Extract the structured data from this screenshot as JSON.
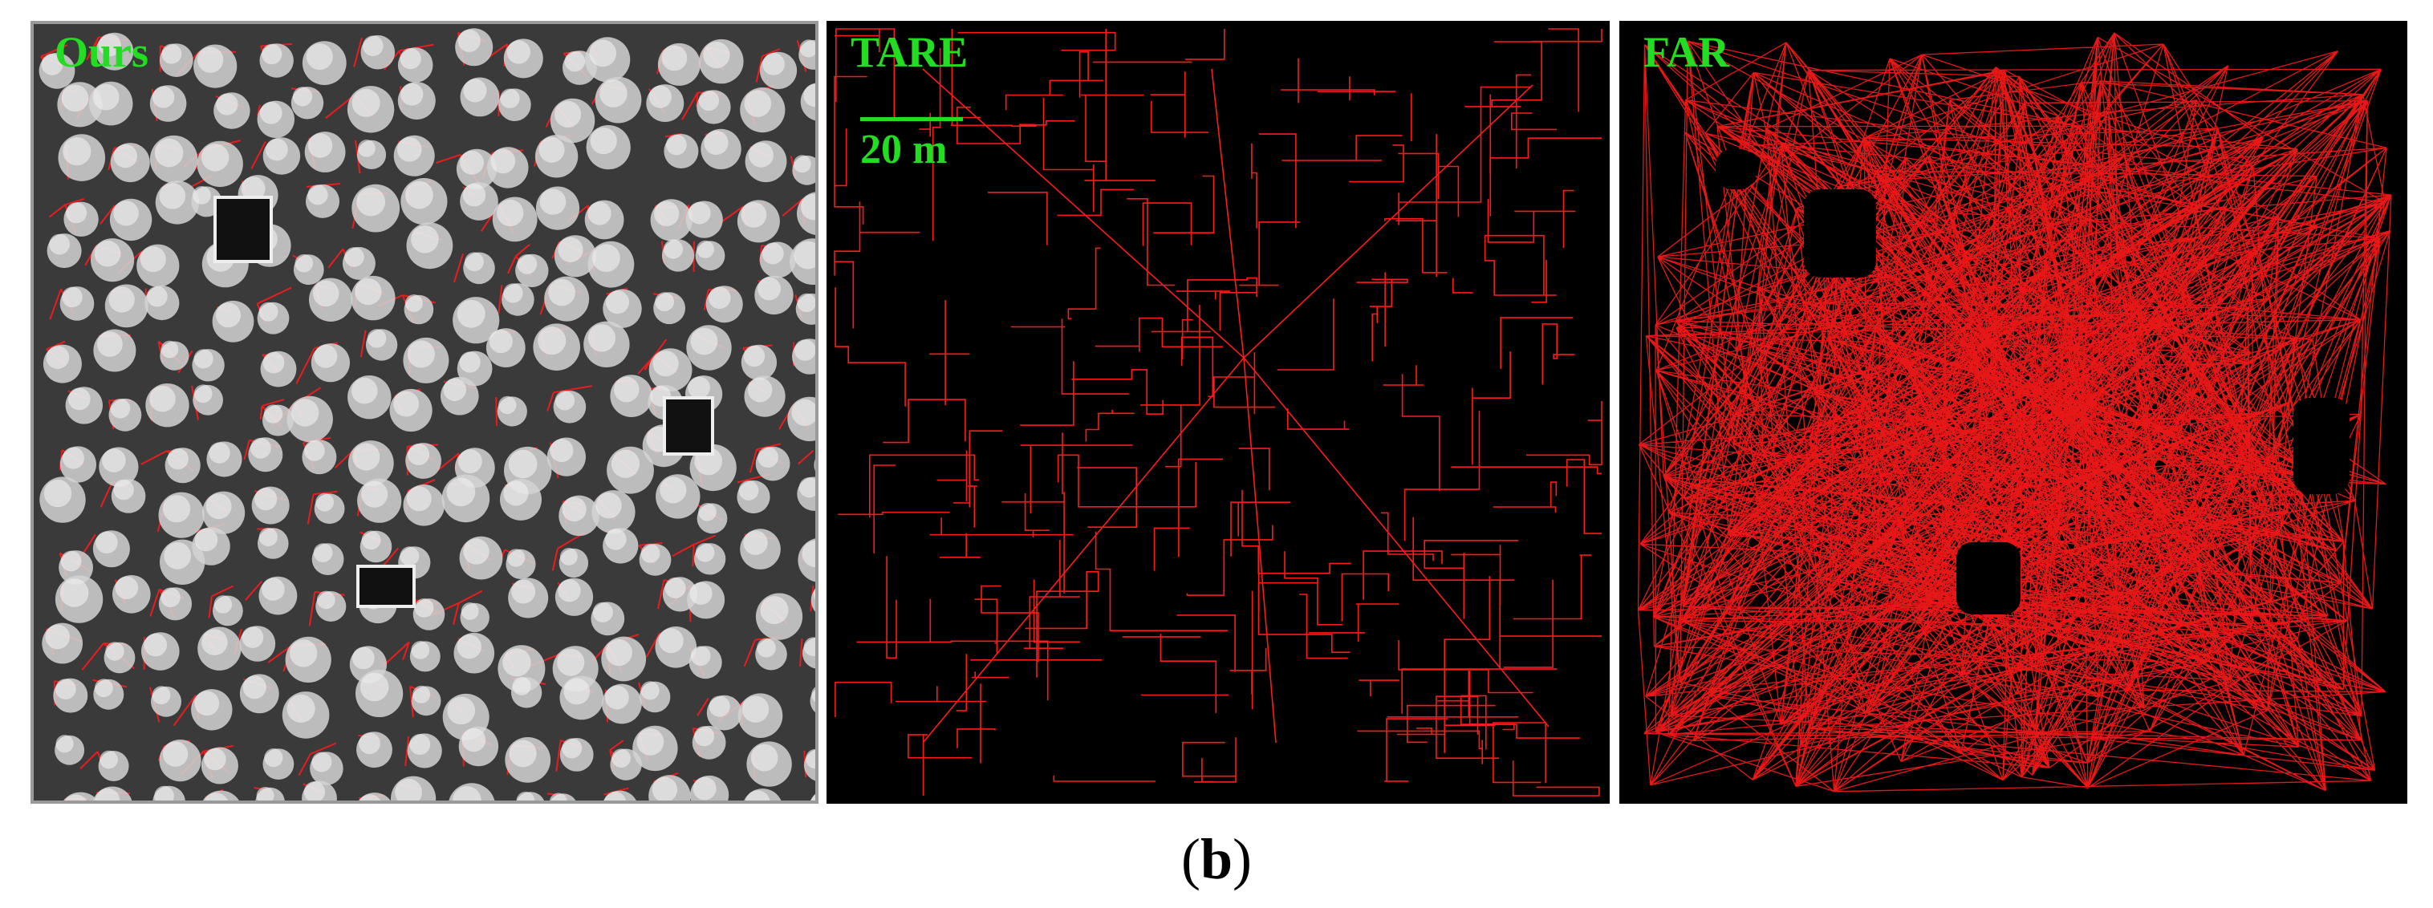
{
  "colors": {
    "label": "#22dd22",
    "path": "#ff1a1a",
    "background": "#000000",
    "tree": "#d4d4d4",
    "terrain": "#3a3a3a"
  },
  "panels": [
    {
      "label": "Ours"
    },
    {
      "label": "TARE",
      "scale_label": "20 m"
    },
    {
      "label": "FAR"
    }
  ],
  "caption": {
    "open": "(",
    "letter": "b",
    "close": ")"
  }
}
